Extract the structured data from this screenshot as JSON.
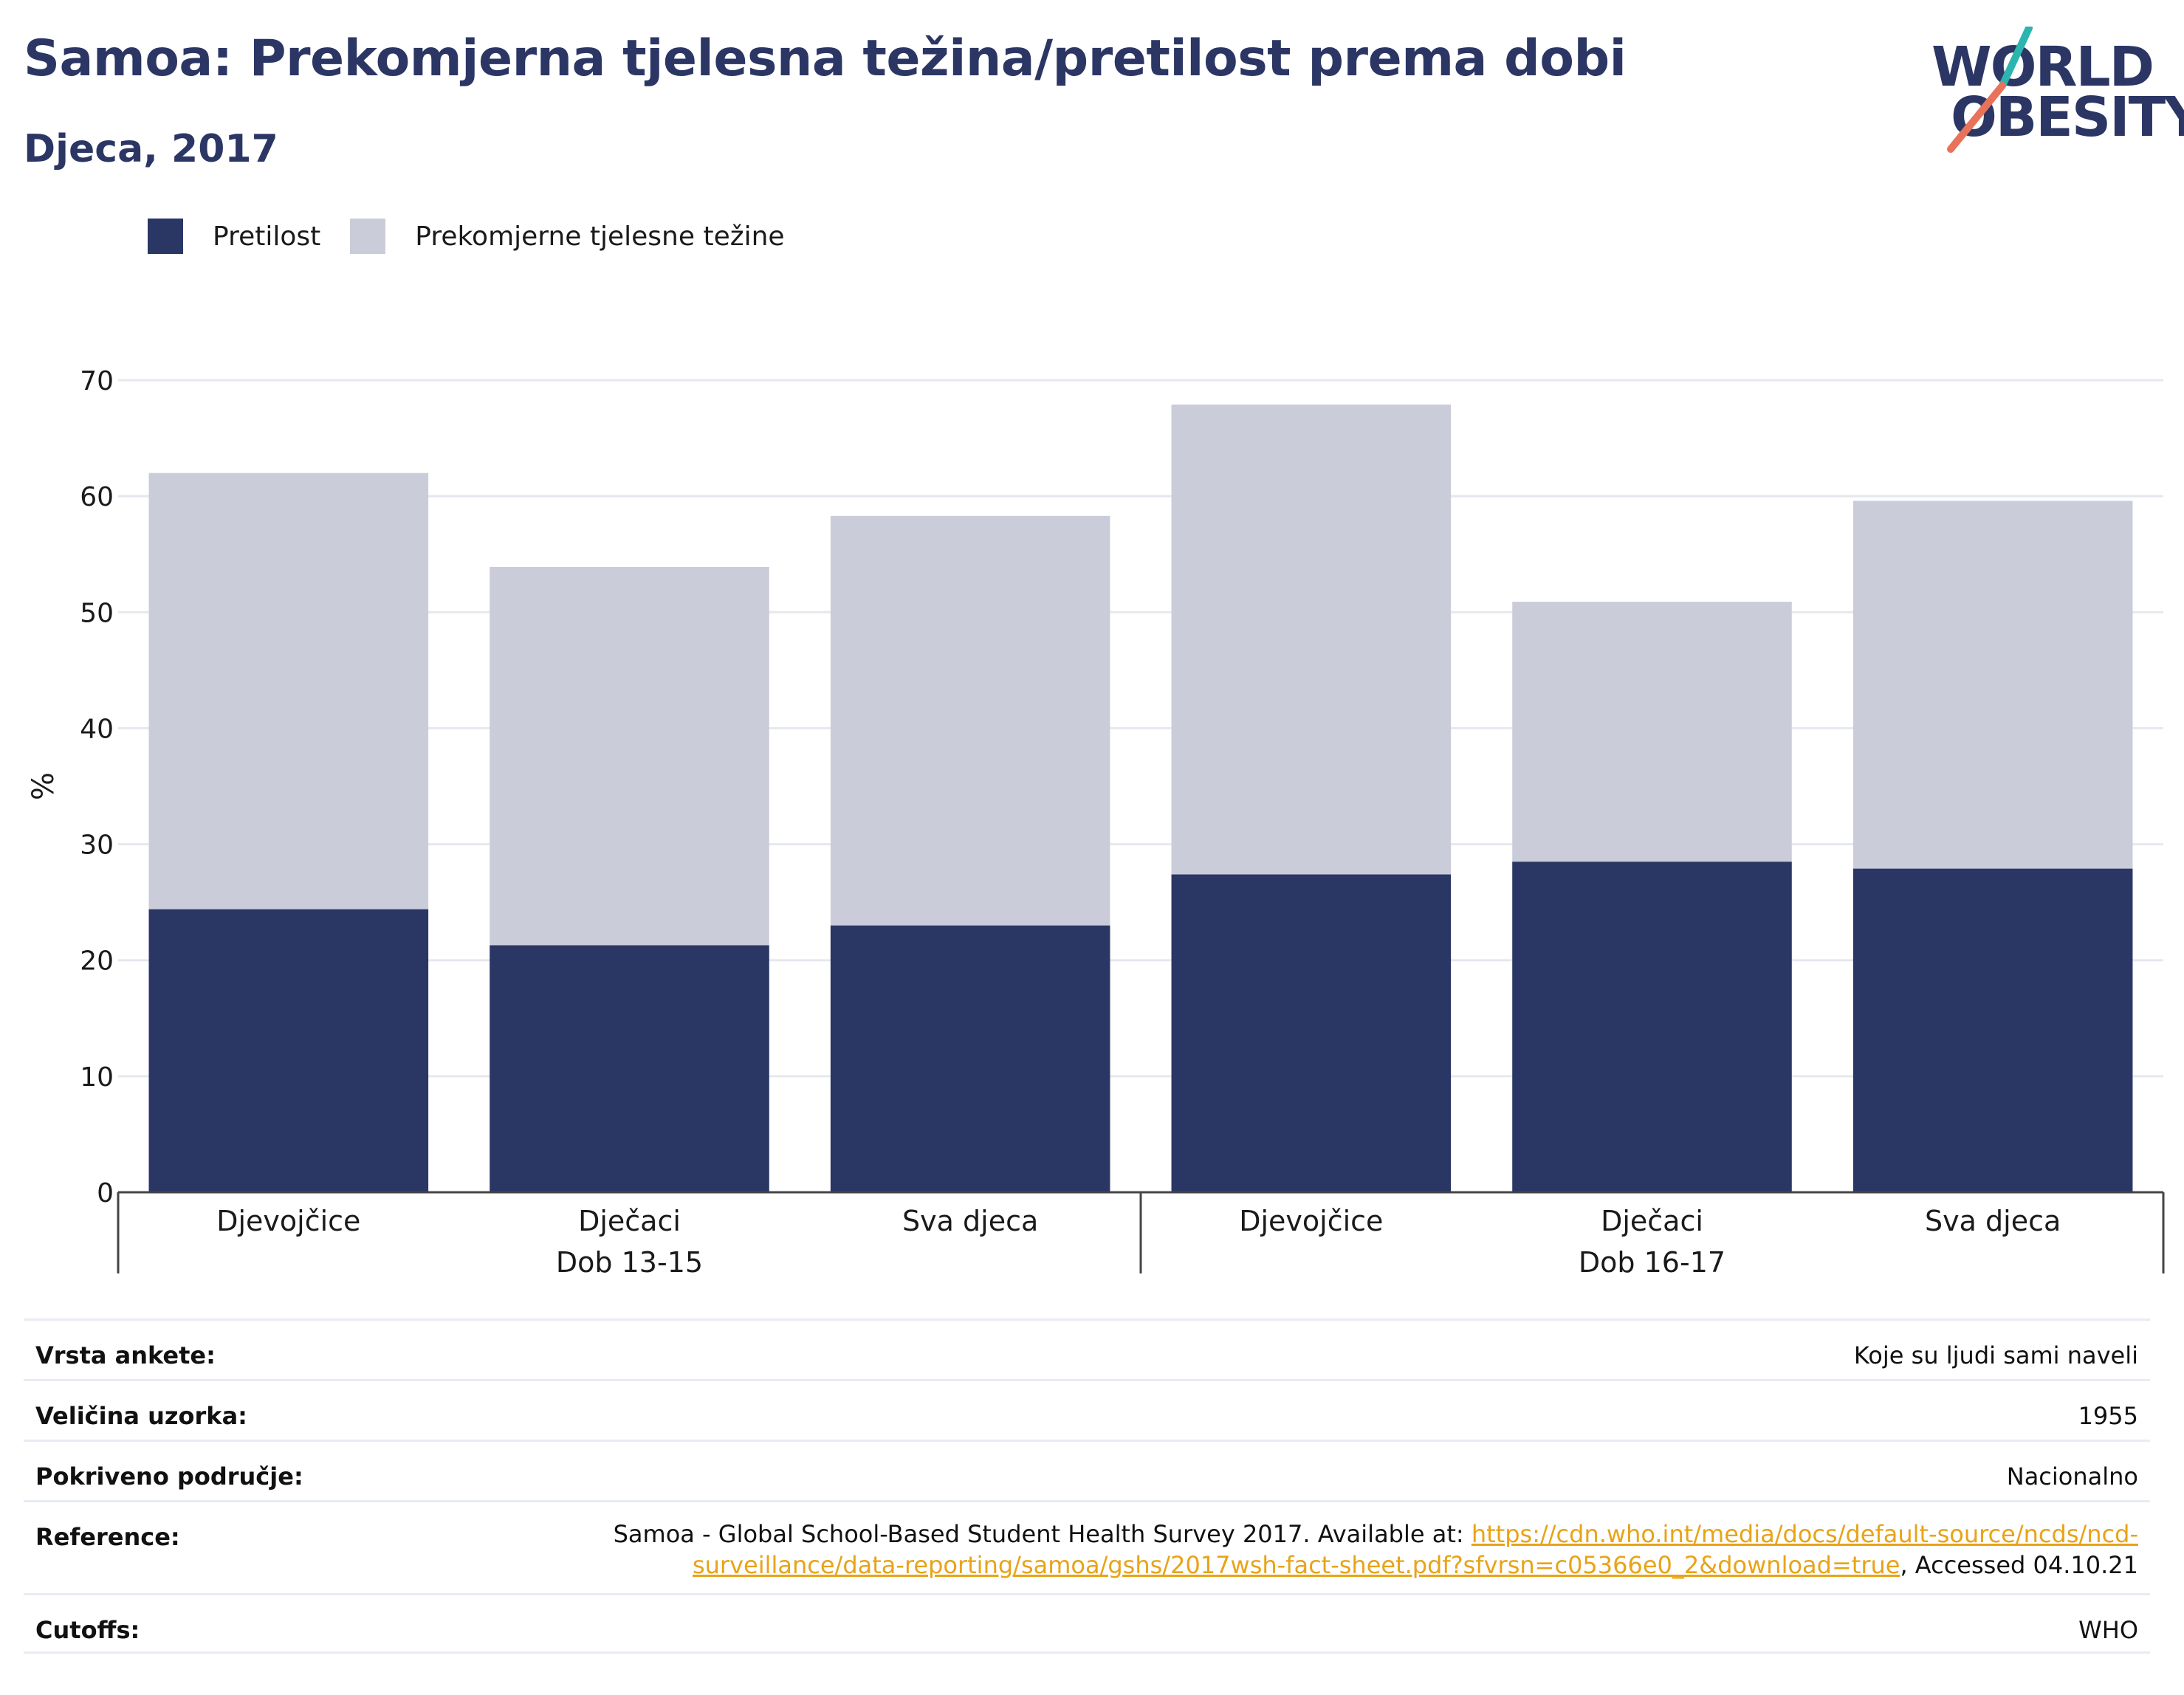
{
  "header": {
    "title": "Samoa: Prekomjerna tjelesna težina/pretilost prema dobi",
    "subtitle": "Djeca, 2017"
  },
  "logo": {
    "line1": "WORLD",
    "line2": "OBESITY",
    "accent_teal": "#2bb5ae",
    "accent_coral": "#e8735a"
  },
  "legend": [
    {
      "label": "Pretilost",
      "color": "#2a3664"
    },
    {
      "label": "Prekomjerne tjelesne težine",
      "color": "#cacdd9"
    }
  ],
  "chart_data": {
    "type": "bar",
    "stacked": true,
    "categories": [
      "Djevojčice",
      "Dječaci",
      "Sva djeca",
      "Djevojčice",
      "Dječaci",
      "Sva djeca"
    ],
    "groups": [
      {
        "label": "Dob 13-15",
        "count": 3
      },
      {
        "label": "Dob 16-17",
        "count": 3
      }
    ],
    "series": [
      {
        "name": "Pretilost",
        "color": "#2a3664",
        "values": [
          24.4,
          21.3,
          23.0,
          27.4,
          28.5,
          27.9
        ]
      },
      {
        "name": "Prekomjerne tjelesne težine",
        "color": "#cacdd9",
        "values": [
          37.6,
          32.6,
          35.3,
          40.5,
          22.4,
          31.7
        ]
      }
    ],
    "totals": [
      62.0,
      53.9,
      58.3,
      67.9,
      50.9,
      59.6
    ],
    "ylabel": "%",
    "ylim": [
      0,
      70
    ],
    "yticks": [
      0,
      10,
      20,
      30,
      40,
      50,
      60,
      70
    ],
    "grid": true,
    "legend_position": "top-left"
  },
  "meta": {
    "survey_label": "Vrsta ankete:",
    "survey_value": "Koje su ljudi sami naveli",
    "sample_label": "Veličina uzorka:",
    "sample_value": "1955",
    "coverage_label": "Pokriveno područje:",
    "coverage_value": "Nacionalno",
    "reference_label": "Reference:",
    "reference_text": "Samoa - Global School-Based Student Health Survey 2017. Available at: ",
    "reference_link_part1": "https://cdn.who.int/media/docs/default-source/ncds/ncd-",
    "reference_link_part2": "surveillance/data-reporting/samoa/gshs/2017wsh-fact-sheet.pdf?sfvrsn=c05366e0_2&download=true",
    "reference_suffix": ", Accessed 04.10.21",
    "cutoffs_label": "Cutoffs:",
    "cutoffs_value": "WHO"
  }
}
